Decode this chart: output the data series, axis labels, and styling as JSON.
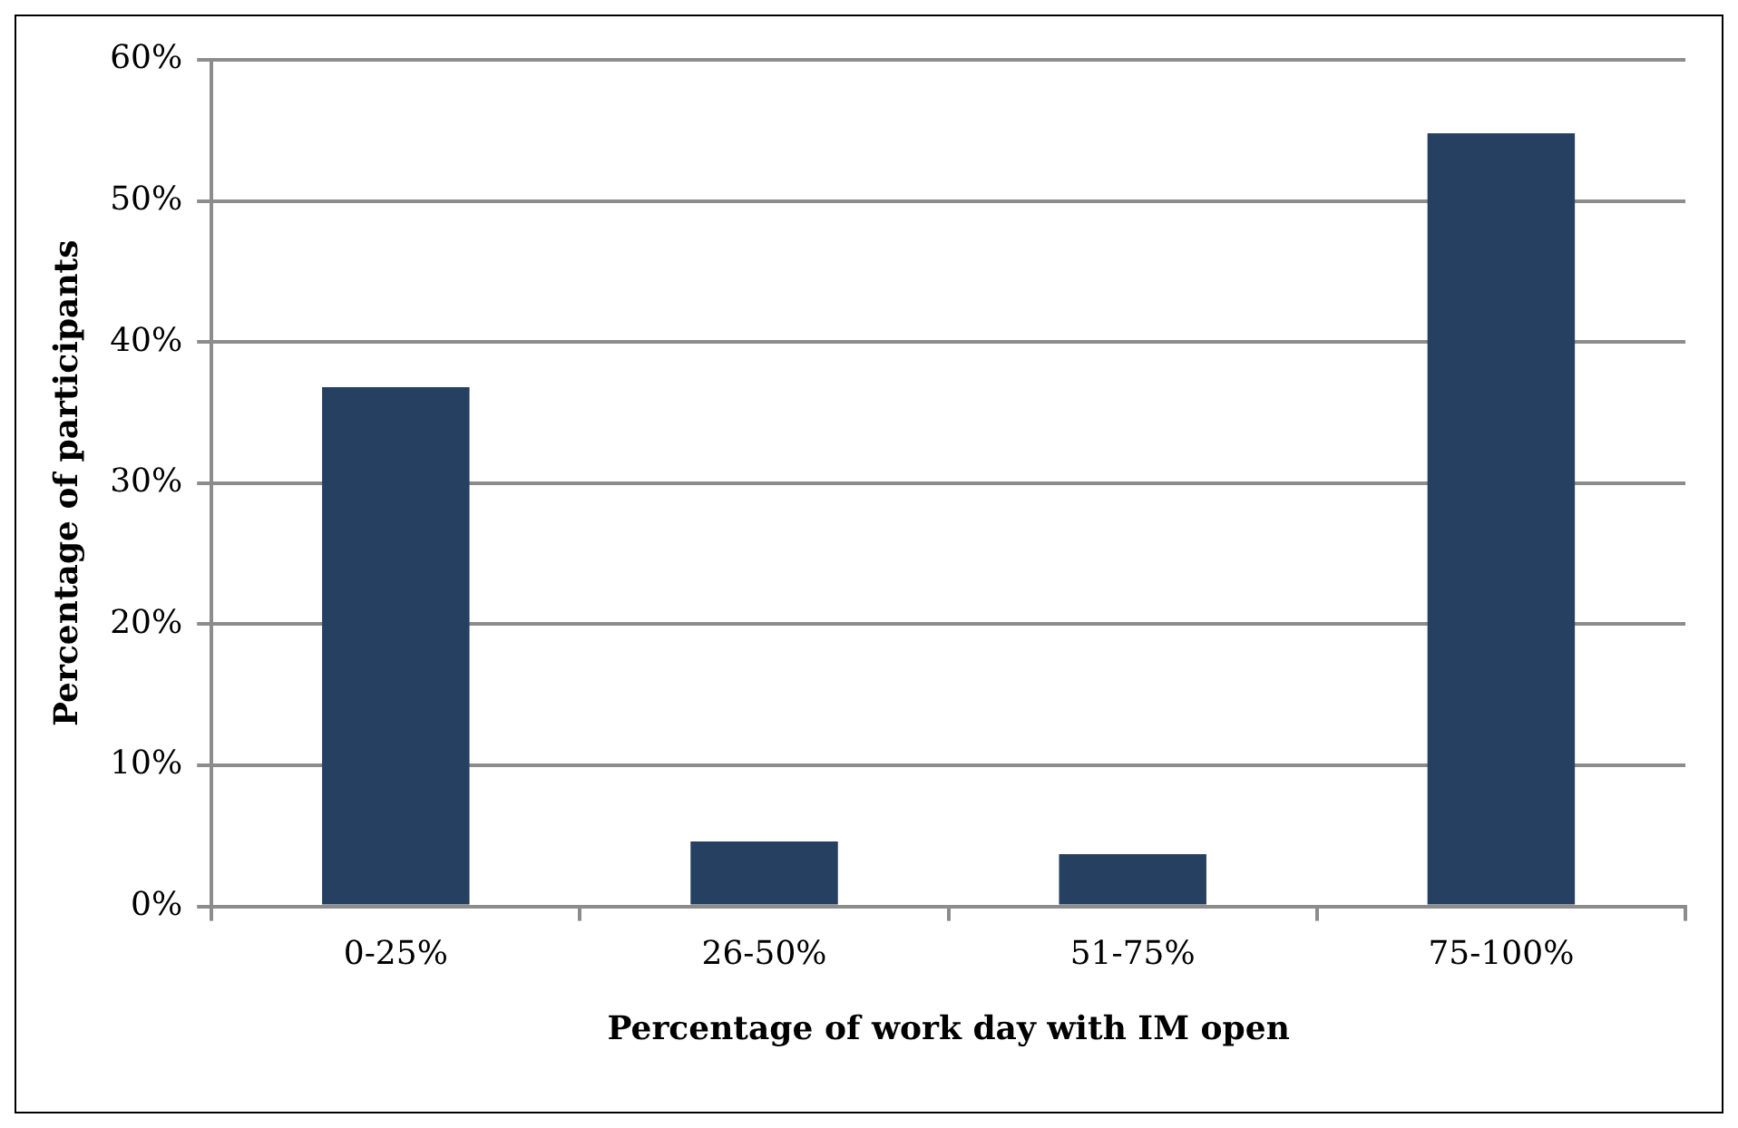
{
  "chart_data": {
    "type": "bar",
    "xlabel": "Percentage of work day with IM open",
    "ylabel": "Percentage of participants",
    "categories": [
      "0-25%",
      "26-50%",
      "51-75%",
      "75-100%"
    ],
    "values": [
      36.8,
      4.6,
      3.7,
      54.8
    ],
    "color": "#264061",
    "ylim": [
      0,
      60
    ],
    "yticks": [
      {
        "value": 0,
        "label": "0%"
      },
      {
        "value": 10,
        "label": "10%"
      },
      {
        "value": 20,
        "label": "20%"
      },
      {
        "value": 30,
        "label": "30%"
      },
      {
        "value": 40,
        "label": "40%"
      },
      {
        "value": 50,
        "label": "50%"
      },
      {
        "value": 60,
        "label": "60%"
      }
    ],
    "grid": "y",
    "legend": false
  }
}
